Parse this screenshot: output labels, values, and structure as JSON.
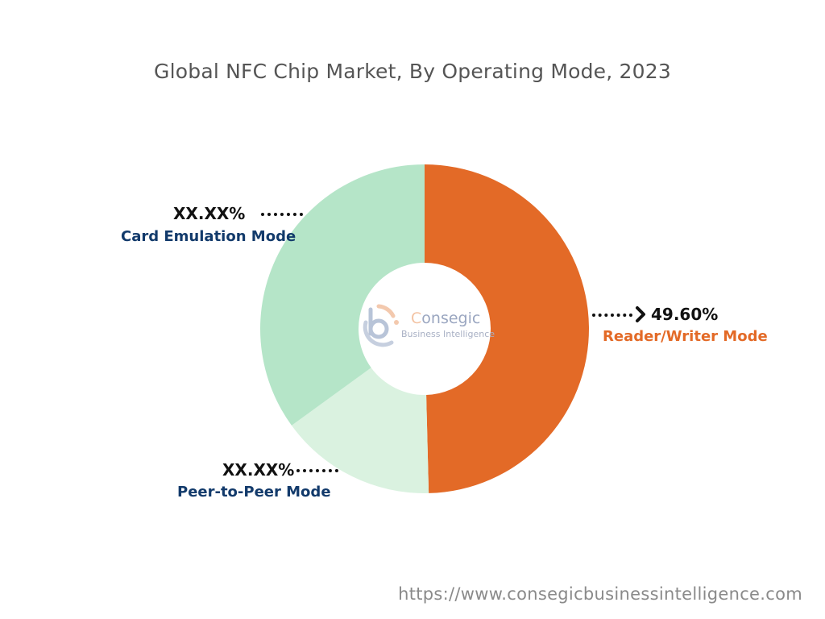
{
  "chart_data": {
    "type": "pie",
    "subtype": "donut",
    "title": "Global NFC Chip Market, By Operating Mode, 2023",
    "start": "top, clockwise",
    "categories": [
      "Reader/Writer Mode",
      "Peer-to-Peer Mode",
      "Card Emulation Mode"
    ],
    "values": [
      49.6,
      15.4,
      35.0
    ],
    "value_labels": [
      "49.60%",
      "XX.XX%",
      "XX.XX%"
    ],
    "colors": [
      "#e36a27",
      "#daf2e0",
      "#b5e5c8"
    ],
    "label_colors": [
      "#e36a27",
      "#123a6b",
      "#123a6b"
    ]
  },
  "logo": {
    "name_first": "C",
    "name_rest": "onsegic",
    "subtitle": "Business Intelligence"
  },
  "footer": {
    "url": "https://www.consegicbusinessintelligence.com"
  }
}
